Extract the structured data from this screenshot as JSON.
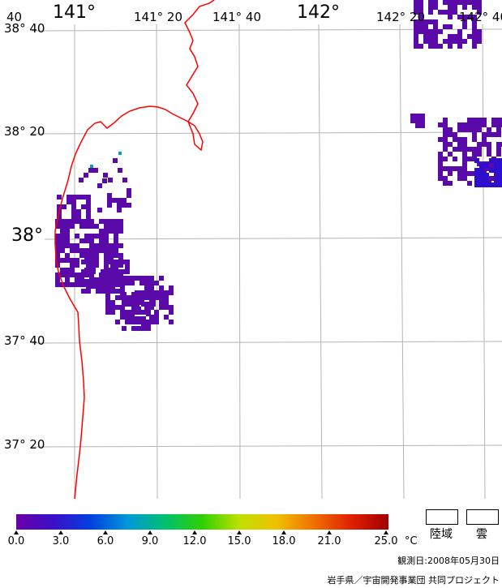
{
  "map": {
    "lon_labels": [
      "141°",
      "141° 20",
      "141° 40",
      "142°",
      "142° 20",
      "142° 40"
    ],
    "lat_labels": [
      "38° 40",
      "38° 20",
      "38°",
      "37° 40",
      "37° 20"
    ],
    "corner_fragment": "40",
    "coastline_color": "#ff0000",
    "grid_color": "#b4b4b4",
    "data_color_cool": "#5a0aa8",
    "data_color_warm": "#2e0fd0",
    "cyan_points_color": "#00a0c8"
  },
  "colorbar": {
    "ticks": [
      "0.0",
      "3.0",
      "6.0",
      "9.0",
      "12.0",
      "15.0",
      "18.0",
      "21.0",
      "25.0"
    ],
    "unit": "°C",
    "colors": [
      "#6a00a8",
      "#3a10c8",
      "#0040e0",
      "#0098d8",
      "#00c070",
      "#30d000",
      "#c0e000",
      "#f0c000",
      "#f07000",
      "#e02000",
      "#a00000"
    ]
  },
  "legend": {
    "land_label": "陸域",
    "cloud_label": "雲"
  },
  "info": {
    "observation_date": "観測日:2008年05月30日",
    "credit": "岩手県／宇宙開発事業団 共同プロジェクト"
  }
}
